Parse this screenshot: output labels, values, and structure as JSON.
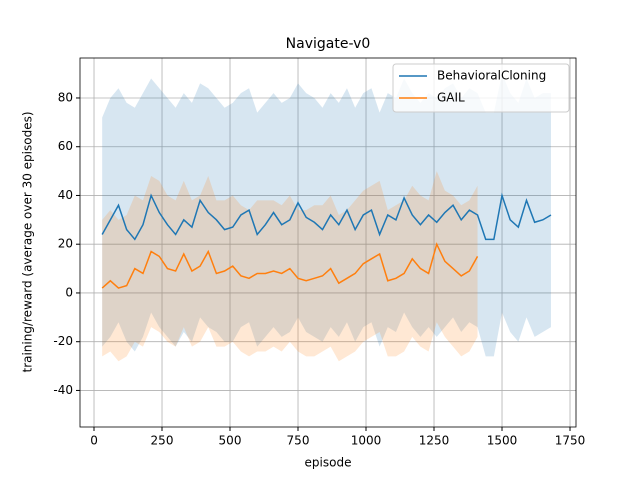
{
  "chart_data": {
    "type": "line",
    "title": "Navigate-v0",
    "x_label": "episode",
    "y_label": "training/reward (average over 30 episodes)",
    "xlim": [
      -51.5,
      1772
    ],
    "ylim": [
      -55,
      96.4
    ],
    "xticks": [
      0,
      250,
      500,
      750,
      1000,
      1250,
      1500,
      1750
    ],
    "yticks": [
      -40,
      -20,
      0,
      20,
      40,
      60,
      80
    ],
    "grid": true,
    "legend": "upper right",
    "series": [
      {
        "name": "BehavioralCloning",
        "color": "#1f77b4",
        "x": [
          30,
          60,
          90,
          120,
          150,
          180,
          210,
          240,
          270,
          300,
          330,
          360,
          390,
          420,
          450,
          480,
          510,
          540,
          570,
          600,
          630,
          660,
          690,
          720,
          750,
          780,
          810,
          840,
          870,
          900,
          930,
          960,
          990,
          1020,
          1050,
          1080,
          1110,
          1140,
          1170,
          1200,
          1230,
          1260,
          1290,
          1320,
          1350,
          1380,
          1410,
          1440,
          1470,
          1500,
          1530,
          1560,
          1590,
          1620,
          1650,
          1680
        ],
        "values": [
          24,
          30,
          36,
          26,
          22,
          28,
          40,
          33,
          28,
          24,
          30,
          27,
          38,
          33,
          30,
          26,
          27,
          32,
          34,
          24,
          28,
          33,
          28,
          30,
          37,
          31,
          29,
          26,
          32,
          28,
          34,
          26,
          32,
          34,
          24,
          32,
          30,
          39,
          32,
          28,
          32,
          29,
          33,
          36,
          30,
          34,
          32,
          22,
          22,
          40,
          30,
          27,
          38,
          29,
          30,
          32
        ],
        "upper": [
          72,
          80,
          84,
          78,
          76,
          82,
          88,
          84,
          80,
          76,
          82,
          78,
          86,
          84,
          80,
          76,
          78,
          82,
          84,
          74,
          78,
          82,
          78,
          80,
          86,
          82,
          80,
          76,
          82,
          78,
          84,
          76,
          82,
          84,
          74,
          82,
          80,
          88,
          82,
          78,
          82,
          80,
          84,
          86,
          80,
          84,
          82,
          74,
          74,
          90,
          82,
          78,
          88,
          80,
          82,
          82
        ],
        "lower": [
          -22,
          -18,
          -12,
          -20,
          -24,
          -18,
          -8,
          -14,
          -18,
          -22,
          -16,
          -20,
          -10,
          -14,
          -16,
          -20,
          -20,
          -14,
          -12,
          -22,
          -18,
          -14,
          -18,
          -16,
          -10,
          -16,
          -18,
          -20,
          -14,
          -18,
          -12,
          -20,
          -14,
          -12,
          -22,
          -14,
          -16,
          -8,
          -14,
          -18,
          -14,
          -18,
          -14,
          -10,
          -16,
          -12,
          -14,
          -26,
          -26,
          -8,
          -16,
          -20,
          -10,
          -18,
          -16,
          -14
        ]
      },
      {
        "name": "GAIL",
        "color": "#ff7f0e",
        "x": [
          30,
          60,
          90,
          120,
          150,
          180,
          210,
          240,
          270,
          300,
          330,
          360,
          390,
          420,
          450,
          480,
          510,
          540,
          570,
          600,
          630,
          660,
          690,
          720,
          750,
          780,
          810,
          840,
          870,
          900,
          930,
          960,
          990,
          1020,
          1050,
          1080,
          1110,
          1140,
          1170,
          1200,
          1230,
          1260,
          1290,
          1320,
          1350,
          1380,
          1410
        ],
        "values": [
          2,
          5,
          2,
          3,
          10,
          8,
          17,
          15,
          10,
          9,
          16,
          9,
          11,
          17,
          8,
          9,
          11,
          7,
          6,
          8,
          8,
          9,
          8,
          10,
          6,
          5,
          6,
          7,
          10,
          4,
          6,
          8,
          12,
          14,
          16,
          5,
          6,
          8,
          14,
          10,
          8,
          20,
          13,
          10,
          7,
          9,
          15
        ],
        "upper": [
          30,
          34,
          30,
          32,
          40,
          38,
          48,
          46,
          40,
          38,
          46,
          38,
          40,
          48,
          38,
          38,
          40,
          36,
          34,
          38,
          38,
          38,
          36,
          40,
          34,
          34,
          36,
          36,
          40,
          32,
          34,
          38,
          42,
          44,
          46,
          34,
          36,
          38,
          44,
          40,
          38,
          50,
          42,
          40,
          36,
          38,
          44
        ],
        "lower": [
          -26,
          -24,
          -28,
          -26,
          -20,
          -22,
          -14,
          -16,
          -20,
          -22,
          -14,
          -22,
          -20,
          -14,
          -22,
          -22,
          -20,
          -24,
          -26,
          -24,
          -24,
          -22,
          -24,
          -20,
          -24,
          -26,
          -26,
          -24,
          -22,
          -28,
          -26,
          -24,
          -20,
          -18,
          -16,
          -26,
          -26,
          -24,
          -18,
          -22,
          -24,
          -12,
          -18,
          -22,
          -26,
          -24,
          -18
        ]
      }
    ]
  }
}
